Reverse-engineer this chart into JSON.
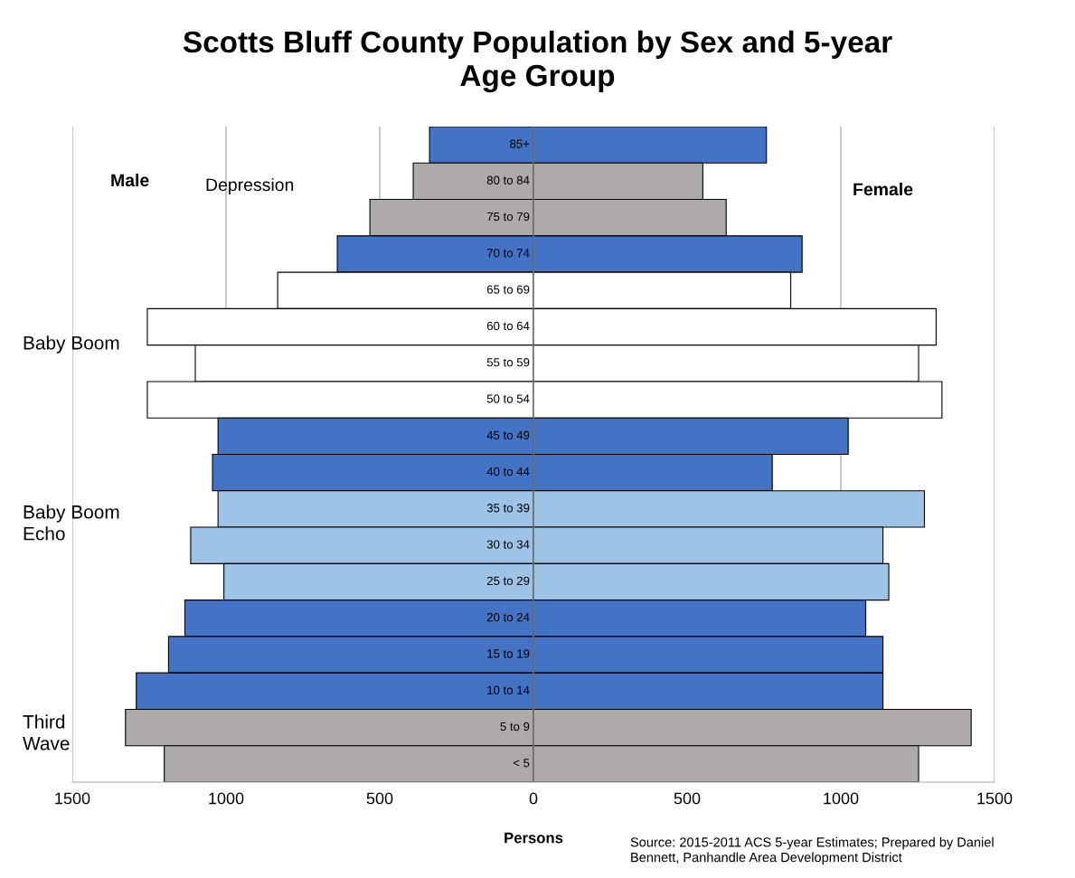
{
  "chart_data": {
    "type": "bar",
    "orientation": "horizontal",
    "title": "Scotts Bluff County Population by Sex and 5-year\nAge Group",
    "xlabel": "Persons",
    "categories": [
      "85+",
      "80 to 84",
      "75 to 79",
      "70 to 74",
      "65 to 69",
      "60 to 64",
      "55 to 59",
      "50 to 54",
      "45 to 49",
      "40 to 44",
      "35 to 39",
      "30 to 34",
      "25 to 29",
      "20 to 24",
      "15 to 19",
      "10 to 14",
      "5 to 9",
      "< 5"
    ],
    "series": [
      {
        "values": [
          -338,
          -391,
          -532,
          -638,
          -832,
          -1256,
          -1100,
          -1256,
          -1026,
          -1044,
          -1026,
          -1115,
          -1007,
          -1134,
          -1187,
          -1292,
          -1327,
          -1201
        ],
        "colors": [
          "#4472c4",
          "#aeaaaa",
          "#aeaaaa",
          "#4472c4",
          "#ffffff",
          "#ffffff",
          "#ffffff",
          "#ffffff",
          "#4472c4",
          "#4472c4",
          "#9dc3e6",
          "#9dc3e6",
          "#9dc3e6",
          "#4472c4",
          "#4472c4",
          "#4472c4",
          "#aeaaaa",
          "#aeaaaa"
        ]
      },
      {
        "values": [
          758,
          551,
          627,
          874,
          837,
          1310,
          1253,
          1329,
          1024,
          777,
          1272,
          1137,
          1156,
          1081,
          1137,
          1137,
          1424,
          1253
        ],
        "colors": [
          "#4472c4",
          "#aeaaaa",
          "#aeaaaa",
          "#4472c4",
          "#ffffff",
          "#ffffff",
          "#ffffff",
          "#ffffff",
          "#4472c4",
          "#4472c4",
          "#9dc3e6",
          "#9dc3e6",
          "#9dc3e6",
          "#4472c4",
          "#4472c4",
          "#4472c4",
          "#aeaaaa",
          "#aeaaaa"
        ]
      }
    ],
    "xlim": [
      -1500,
      1500
    ],
    "xticks": [
      {
        "value": -1500,
        "label": "1500"
      },
      {
        "value": -1000,
        "label": "1000"
      },
      {
        "value": -500,
        "label": "500"
      },
      0,
      500,
      1000,
      1500
    ],
    "grid": "x",
    "legend": false,
    "stacked": true,
    "annotations": [
      "Male",
      "Female",
      "Depression",
      "Baby Boom",
      "Baby Boom\nEcho",
      "Third\nWave",
      "Source: 2015-2011 ACS 5-year Estimates; Prepared by Daniel\nBennett, Panhandle Area Development District"
    ]
  }
}
